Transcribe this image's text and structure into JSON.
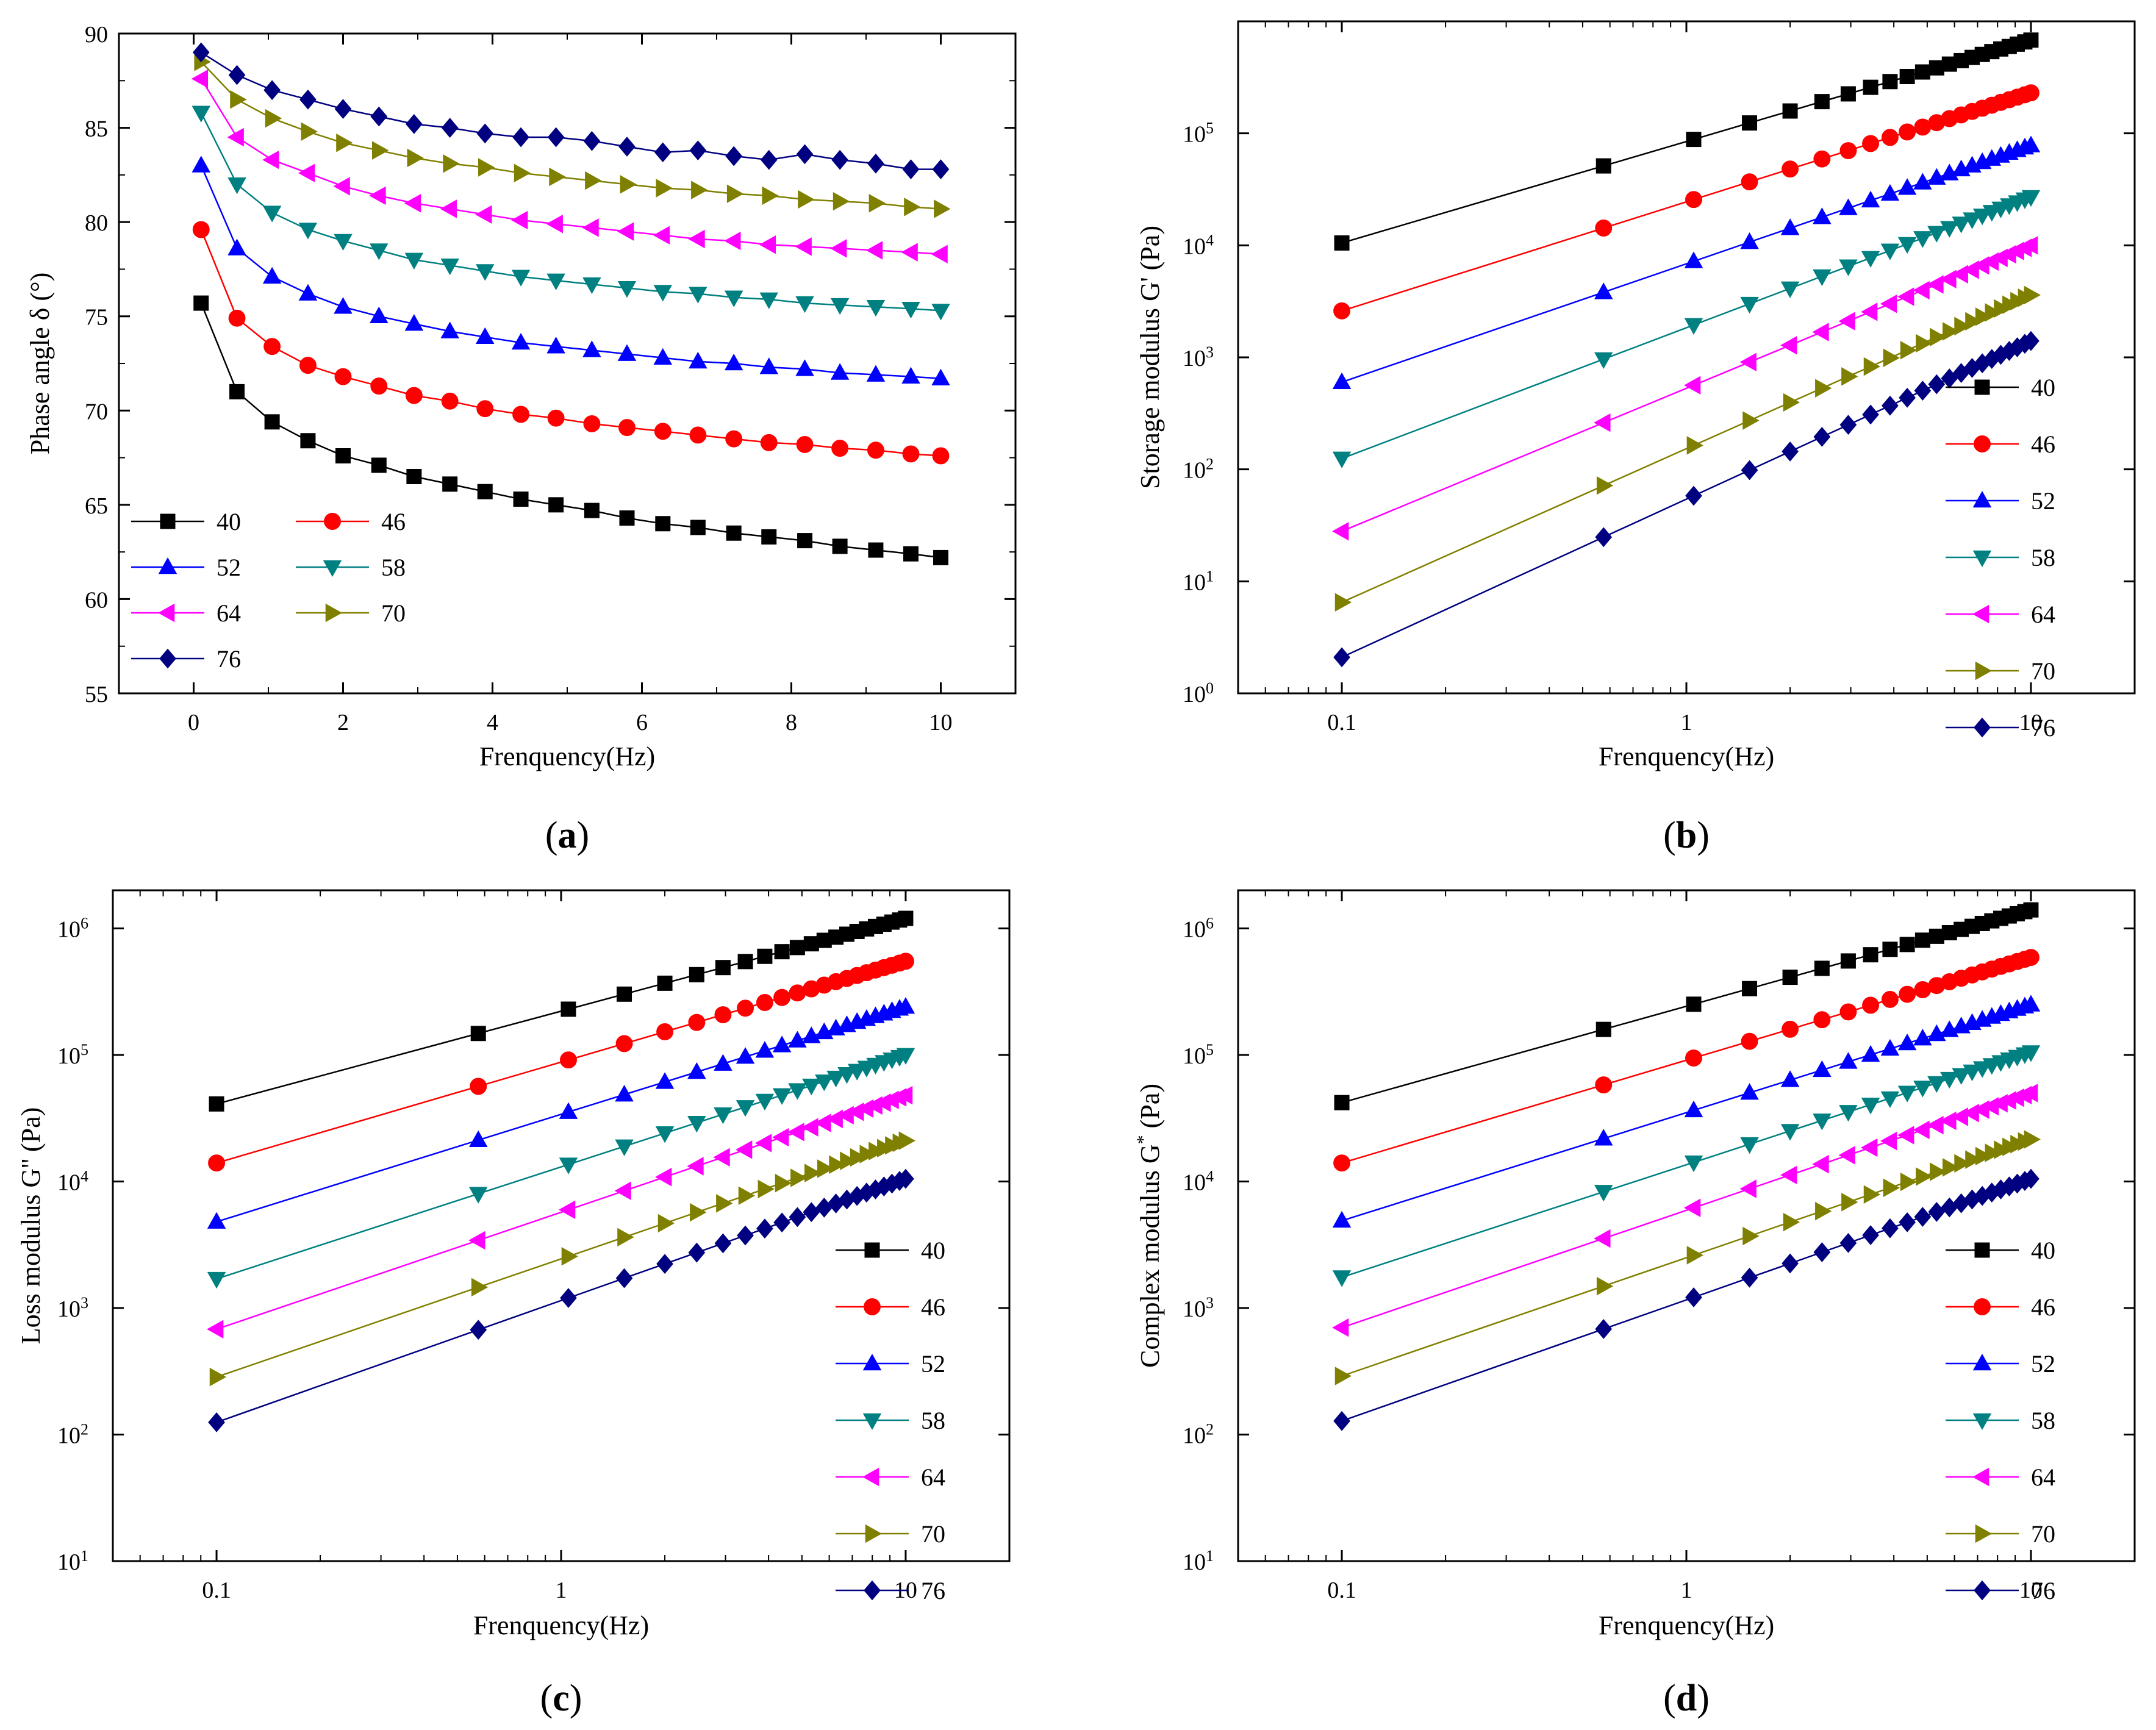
{
  "figure": {
    "panels": [
      {
        "id": "a",
        "label": "(a)"
      },
      {
        "id": "b",
        "label": "(b)"
      },
      {
        "id": "c",
        "label": "(c)"
      },
      {
        "id": "d",
        "label": "(d)"
      }
    ]
  },
  "chart_data": [
    {
      "id": "a",
      "type": "line",
      "title": "",
      "xlabel": "Frenquency(Hz)",
      "ylabel": "Phase angle δ (°)",
      "xscale": "linear",
      "yscale": "linear",
      "xlim": [
        -1,
        11
      ],
      "ylim": [
        55,
        90
      ],
      "xticks": [
        0,
        2,
        4,
        6,
        8,
        10
      ],
      "yticks": [
        55,
        60,
        65,
        70,
        75,
        80,
        85,
        90
      ],
      "grid": false,
      "legend": {
        "position": "bottom-left",
        "columns": 2
      },
      "x": [
        0.1,
        0.58,
        1.05,
        1.53,
        2.0,
        2.48,
        2.95,
        3.43,
        3.9,
        4.38,
        4.85,
        5.33,
        5.8,
        6.28,
        6.75,
        7.23,
        7.7,
        8.18,
        8.65,
        9.13,
        9.6,
        10.0
      ],
      "series": [
        {
          "name": "40",
          "color": "#000000",
          "marker": "square",
          "values": [
            75.7,
            71.0,
            69.4,
            68.4,
            67.6,
            67.1,
            66.5,
            66.1,
            65.7,
            65.3,
            65.0,
            64.7,
            64.3,
            64.0,
            63.8,
            63.5,
            63.3,
            63.1,
            62.8,
            62.6,
            62.4,
            62.2
          ]
        },
        {
          "name": "46",
          "color": "#ff0000",
          "marker": "circle",
          "values": [
            79.6,
            74.9,
            73.4,
            72.4,
            71.8,
            71.3,
            70.8,
            70.5,
            70.1,
            69.8,
            69.6,
            69.3,
            69.1,
            68.9,
            68.7,
            68.5,
            68.3,
            68.2,
            68.0,
            67.9,
            67.7,
            67.6
          ]
        },
        {
          "name": "52",
          "color": "#0000ff",
          "marker": "triangle-up",
          "values": [
            83.0,
            78.6,
            77.1,
            76.2,
            75.5,
            75.0,
            74.6,
            74.2,
            73.9,
            73.6,
            73.4,
            73.2,
            73.0,
            72.8,
            72.6,
            72.5,
            72.3,
            72.2,
            72.0,
            71.9,
            71.8,
            71.7
          ]
        },
        {
          "name": "58",
          "color": "#008080",
          "marker": "triangle-down",
          "values": [
            85.8,
            82.0,
            80.5,
            79.6,
            79.0,
            78.5,
            78.0,
            77.7,
            77.4,
            77.1,
            76.9,
            76.7,
            76.5,
            76.3,
            76.2,
            76.0,
            75.9,
            75.7,
            75.6,
            75.5,
            75.4,
            75.3
          ]
        },
        {
          "name": "64",
          "color": "#ff00ff",
          "marker": "triangle-left",
          "values": [
            87.6,
            84.5,
            83.3,
            82.6,
            81.9,
            81.4,
            81.0,
            80.7,
            80.4,
            80.1,
            79.9,
            79.7,
            79.5,
            79.3,
            79.1,
            79.0,
            78.8,
            78.7,
            78.6,
            78.5,
            78.4,
            78.3
          ]
        },
        {
          "name": "70",
          "color": "#808000",
          "marker": "triangle-right",
          "values": [
            88.5,
            86.5,
            85.5,
            84.8,
            84.2,
            83.8,
            83.4,
            83.1,
            82.9,
            82.6,
            82.4,
            82.2,
            82.0,
            81.8,
            81.7,
            81.5,
            81.4,
            81.2,
            81.1,
            81.0,
            80.8,
            80.7
          ]
        },
        {
          "name": "76",
          "color": "#000080",
          "marker": "diamond",
          "values": [
            89.0,
            87.8,
            87.0,
            86.5,
            86.0,
            85.6,
            85.2,
            85.0,
            84.7,
            84.5,
            84.5,
            84.3,
            84.0,
            83.7,
            83.8,
            83.5,
            83.3,
            83.6,
            83.3,
            83.1,
            82.8,
            82.8
          ]
        }
      ]
    },
    {
      "id": "b",
      "type": "line",
      "title": "",
      "xlabel": "Frenquency(Hz)",
      "ylabel": "Storage modulus G' (Pa)",
      "xscale": "log",
      "yscale": "log",
      "xlim": [
        0.05,
        20
      ],
      "ylim": [
        1,
        1000000
      ],
      "xticks": [
        0.1,
        1,
        10
      ],
      "xtick_labels": [
        "0.1",
        "1",
        "10"
      ],
      "yticks": [
        1,
        10,
        100,
        1000,
        10000,
        100000
      ],
      "ytick_exponents": [
        "0",
        "1",
        "2",
        "3",
        "4",
        "5"
      ],
      "grid": false,
      "legend": {
        "position": "right",
        "columns": 1
      },
      "x": [
        0.1,
        0.575,
        1.05,
        1.525,
        2.0,
        2.475,
        2.95,
        3.425,
        3.9,
        4.375,
        4.85,
        5.325,
        5.8,
        6.275,
        6.75,
        7.225,
        7.7,
        8.175,
        8.65,
        9.125,
        9.6,
        10.0
      ],
      "series": [
        {
          "name": "40",
          "color": "#000000",
          "marker": "square",
          "start": 10500,
          "end": 680000
        },
        {
          "name": "46",
          "color": "#ff0000",
          "marker": "circle",
          "start": 2600,
          "end": 230000
        },
        {
          "name": "52",
          "color": "#0000ff",
          "marker": "triangle-up",
          "start": 600,
          "end": 78000
        },
        {
          "name": "58",
          "color": "#008080",
          "marker": "triangle-down",
          "start": 125,
          "end": 27000
        },
        {
          "name": "64",
          "color": "#ff00ff",
          "marker": "triangle-left",
          "start": 28,
          "end": 10000
        },
        {
          "name": "70",
          "color": "#808000",
          "marker": "triangle-right",
          "start": 6.5,
          "end": 3600
        },
        {
          "name": "76",
          "color": "#000080",
          "marker": "diamond",
          "start": 2.1,
          "end": 1400
        }
      ]
    },
    {
      "id": "c",
      "type": "line",
      "title": "",
      "xlabel": "Frenquency(Hz)",
      "ylabel": "Loss modulus G'' (Pa)",
      "xscale": "log",
      "yscale": "log",
      "xlim": [
        0.05,
        20
      ],
      "ylim": [
        10,
        2000000
      ],
      "xticks": [
        0.1,
        1,
        10
      ],
      "xtick_labels": [
        "0.1",
        "1",
        "10"
      ],
      "yticks": [
        10,
        100,
        1000,
        10000,
        100000,
        1000000
      ],
      "ytick_exponents": [
        "1",
        "2",
        "3",
        "4",
        "5",
        "6"
      ],
      "grid": false,
      "legend": {
        "position": "bottom-right",
        "columns": 1
      },
      "x": [
        0.1,
        0.575,
        1.05,
        1.525,
        2.0,
        2.475,
        2.95,
        3.425,
        3.9,
        4.375,
        4.85,
        5.325,
        5.8,
        6.275,
        6.75,
        7.225,
        7.7,
        8.175,
        8.65,
        9.125,
        9.6,
        10.0
      ],
      "series": [
        {
          "name": "40",
          "color": "#000000",
          "marker": "square",
          "start": 41000,
          "end": 1200000
        },
        {
          "name": "46",
          "color": "#ff0000",
          "marker": "circle",
          "start": 14000,
          "end": 550000
        },
        {
          "name": "52",
          "color": "#0000ff",
          "marker": "triangle-up",
          "start": 4800,
          "end": 240000
        },
        {
          "name": "58",
          "color": "#008080",
          "marker": "triangle-down",
          "start": 1700,
          "end": 100000
        },
        {
          "name": "64",
          "color": "#ff00ff",
          "marker": "triangle-left",
          "start": 680,
          "end": 48000
        },
        {
          "name": "70",
          "color": "#808000",
          "marker": "triangle-right",
          "start": 285,
          "end": 21000
        },
        {
          "name": "76",
          "color": "#000080",
          "marker": "diamond",
          "start": 125,
          "end": 10500
        }
      ]
    },
    {
      "id": "d",
      "type": "line",
      "title": "",
      "xlabel": "Frenquency(Hz)",
      "ylabel": "Complex modulus G",
      "ylabel_superscript": "*",
      "ylabel_suffix": " (Pa)",
      "xscale": "log",
      "yscale": "log",
      "xlim": [
        0.05,
        20
      ],
      "ylim": [
        10,
        2000000
      ],
      "xticks": [
        0.1,
        1,
        10
      ],
      "xtick_labels": [
        "0.1",
        "1",
        "10"
      ],
      "yticks": [
        10,
        100,
        1000,
        10000,
        100000,
        1000000
      ],
      "ytick_exponents": [
        "1",
        "2",
        "3",
        "4",
        "5",
        "6"
      ],
      "grid": false,
      "legend": {
        "position": "bottom-right",
        "columns": 1
      },
      "x": [
        0.1,
        0.575,
        1.05,
        1.525,
        2.0,
        2.475,
        2.95,
        3.425,
        3.9,
        4.375,
        4.85,
        5.325,
        5.8,
        6.275,
        6.75,
        7.225,
        7.7,
        8.175,
        8.65,
        9.125,
        9.6,
        10.0
      ],
      "series": [
        {
          "name": "40",
          "color": "#000000",
          "marker": "square",
          "start": 42000,
          "end": 1400000
        },
        {
          "name": "46",
          "color": "#ff0000",
          "marker": "circle",
          "start": 14000,
          "end": 590000
        },
        {
          "name": "52",
          "color": "#0000ff",
          "marker": "triangle-up",
          "start": 4900,
          "end": 250000
        },
        {
          "name": "58",
          "color": "#008080",
          "marker": "triangle-down",
          "start": 1750,
          "end": 105000
        },
        {
          "name": "64",
          "color": "#ff00ff",
          "marker": "triangle-left",
          "start": 700,
          "end": 50000
        },
        {
          "name": "70",
          "color": "#808000",
          "marker": "triangle-right",
          "start": 290,
          "end": 21500
        },
        {
          "name": "76",
          "color": "#000080",
          "marker": "diamond",
          "start": 128,
          "end": 10500
        }
      ]
    }
  ]
}
